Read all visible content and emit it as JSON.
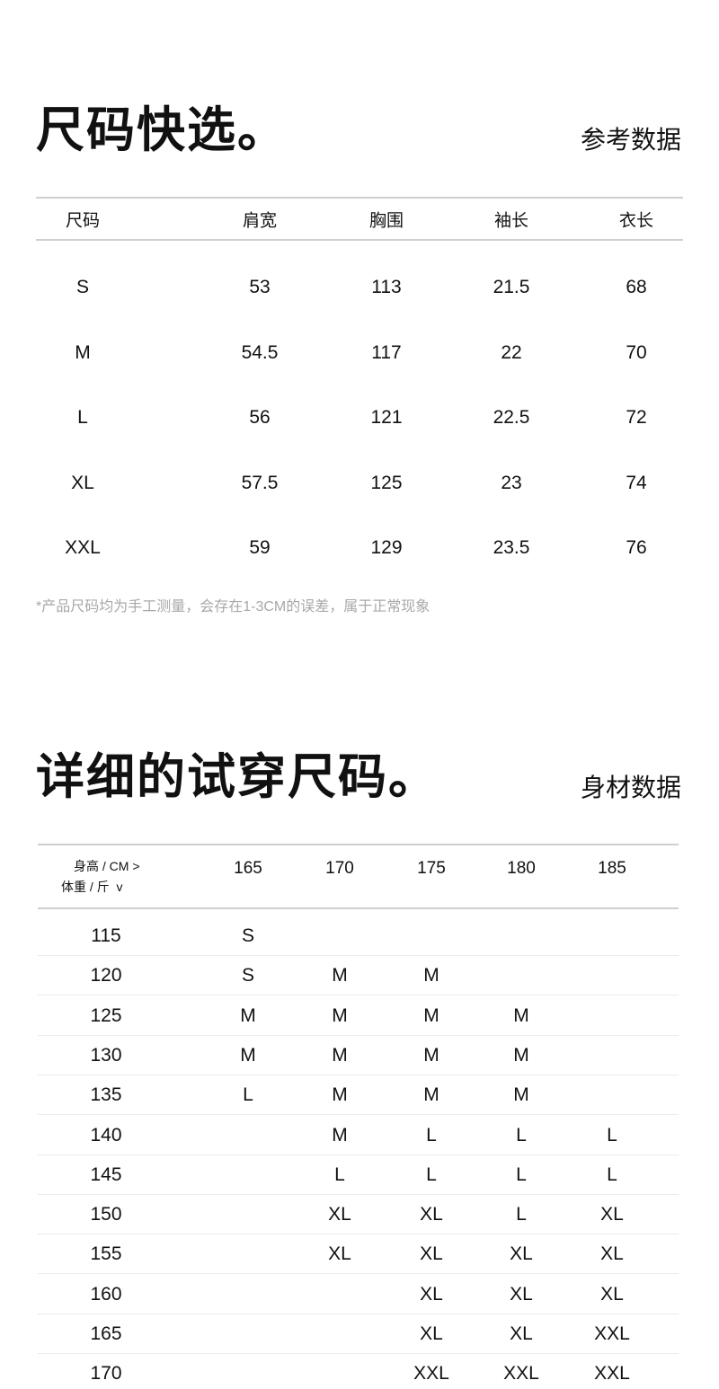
{
  "quick": {
    "title": "尺码快选。",
    "subtitle": "参考数据",
    "headers": [
      "尺码",
      "肩宽",
      "胸围",
      "袖长",
      "衣长"
    ],
    "rows": [
      [
        "S",
        "53",
        "113",
        "21.5",
        "68"
      ],
      [
        "M",
        "54.5",
        "117",
        "22",
        "70"
      ],
      [
        "L",
        "56",
        "121",
        "22.5",
        "72"
      ],
      [
        "XL",
        "57.5",
        "125",
        "23",
        "74"
      ],
      [
        "XXL",
        "59",
        "129",
        "23.5",
        "76"
      ]
    ],
    "note": "*产品尺码均为手工测量，会存在1-3CM的误差，属于正常现象"
  },
  "fit": {
    "title": "详细的试穿尺码。",
    "subtitle": "身材数据",
    "corner_height": "身高 / CM >",
    "corner_weight": "体重 / 斤  v",
    "heights": [
      "165",
      "170",
      "175",
      "180",
      "185"
    ],
    "rows": [
      {
        "weight": "115",
        "sizes": [
          "S",
          "",
          "",
          "",
          ""
        ]
      },
      {
        "weight": "120",
        "sizes": [
          "S",
          "M",
          "M",
          "",
          ""
        ]
      },
      {
        "weight": "125",
        "sizes": [
          "M",
          "M",
          "M",
          "M",
          ""
        ]
      },
      {
        "weight": "130",
        "sizes": [
          "M",
          "M",
          "M",
          "M",
          ""
        ]
      },
      {
        "weight": "135",
        "sizes": [
          "L",
          "M",
          "M",
          "M",
          ""
        ]
      },
      {
        "weight": "140",
        "sizes": [
          "",
          "M",
          "L",
          "L",
          "L"
        ]
      },
      {
        "weight": "145",
        "sizes": [
          "",
          "L",
          "L",
          "L",
          "L"
        ]
      },
      {
        "weight": "150",
        "sizes": [
          "",
          "XL",
          "XL",
          "L",
          "XL"
        ]
      },
      {
        "weight": "155",
        "sizes": [
          "",
          "XL",
          "XL",
          "XL",
          "XL"
        ]
      },
      {
        "weight": "160",
        "sizes": [
          "",
          "",
          "XL",
          "XL",
          "XL"
        ]
      },
      {
        "weight": "165",
        "sizes": [
          "",
          "",
          "XL",
          "XL",
          "XXL"
        ]
      },
      {
        "weight": "170",
        "sizes": [
          "",
          "",
          "XXL",
          "XXL",
          "XXL"
        ]
      }
    ]
  }
}
